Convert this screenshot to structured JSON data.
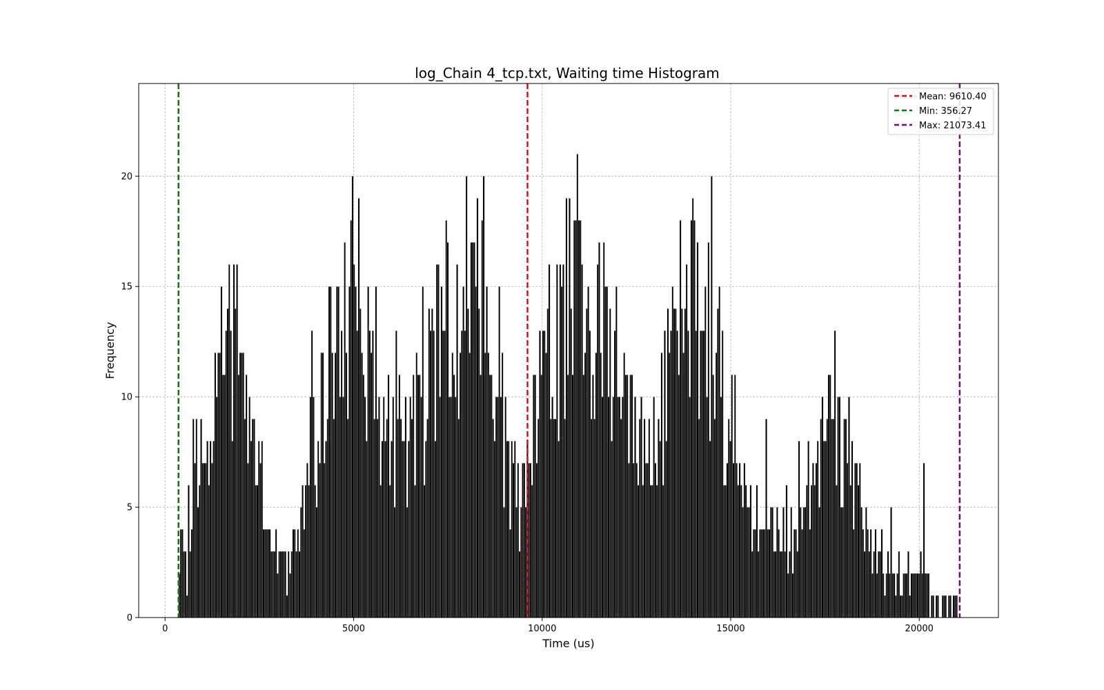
{
  "chart_data": {
    "type": "bar",
    "title": "log_Chain 4_tcp.txt, Waiting time Histogram",
    "xlabel": "Time (us)",
    "ylabel": "Frequency",
    "xlim": [
      -700,
      22100
    ],
    "ylim": [
      0,
      24.2
    ],
    "xticks": [
      0,
      5000,
      10000,
      15000,
      20000
    ],
    "yticks": [
      0,
      5,
      10,
      15,
      20
    ],
    "grid": true,
    "bar_color": "#000000",
    "legend_placement": "top-right",
    "bin_width_us": 41.4,
    "profile": {
      "x": [
        356,
        600,
        900,
        1200,
        1500,
        1700,
        1900,
        2200,
        2500,
        2800,
        3100,
        3400,
        3700,
        4000,
        4300,
        4600,
        4900,
        5200,
        5500,
        5800,
        6100,
        6400,
        6700,
        7000,
        7300,
        7600,
        7900,
        8200,
        8500,
        8800,
        9100,
        9400,
        9700,
        10000,
        10300,
        10600,
        10900,
        11200,
        11500,
        11800,
        12100,
        12400,
        12700,
        13000,
        13300,
        13600,
        13900,
        14200,
        14500,
        14800,
        15100,
        15400,
        15700,
        16000,
        16300,
        16600,
        16900,
        17200,
        17500,
        17800,
        18100,
        18400,
        18700,
        19000,
        19300,
        19600,
        19900,
        20200,
        20500,
        20800,
        21073
      ],
      "y": [
        2,
        3.5,
        6,
        9,
        12,
        13,
        12,
        9,
        6.5,
        4,
        3,
        3.5,
        5.5,
        8,
        10.5,
        12.5,
        14,
        13.5,
        12,
        9.5,
        7.5,
        7,
        9,
        11.5,
        13,
        14,
        15,
        15.5,
        14.5,
        11.5,
        8,
        6.5,
        7.5,
        10,
        12.5,
        14,
        14.5,
        14.5,
        13.5,
        12,
        10,
        8,
        7,
        8.5,
        11,
        12.5,
        13.5,
        13.5,
        12,
        10,
        8,
        6,
        4.5,
        3.5,
        3,
        3,
        4.5,
        7,
        9,
        9.5,
        7.5,
        5,
        3,
        2.5,
        2.2,
        2,
        2,
        1.5,
        1,
        0.6,
        0.3
      ]
    },
    "reference_lines": [
      {
        "label": "Mean: 9610.40",
        "x": 9610.4,
        "color": "#ff0000"
      },
      {
        "label": "Min: 356.27",
        "x": 356.27,
        "color": "#008000"
      },
      {
        "label": "Max: 21073.41",
        "x": 21073.41,
        "color": "#800080"
      }
    ]
  }
}
